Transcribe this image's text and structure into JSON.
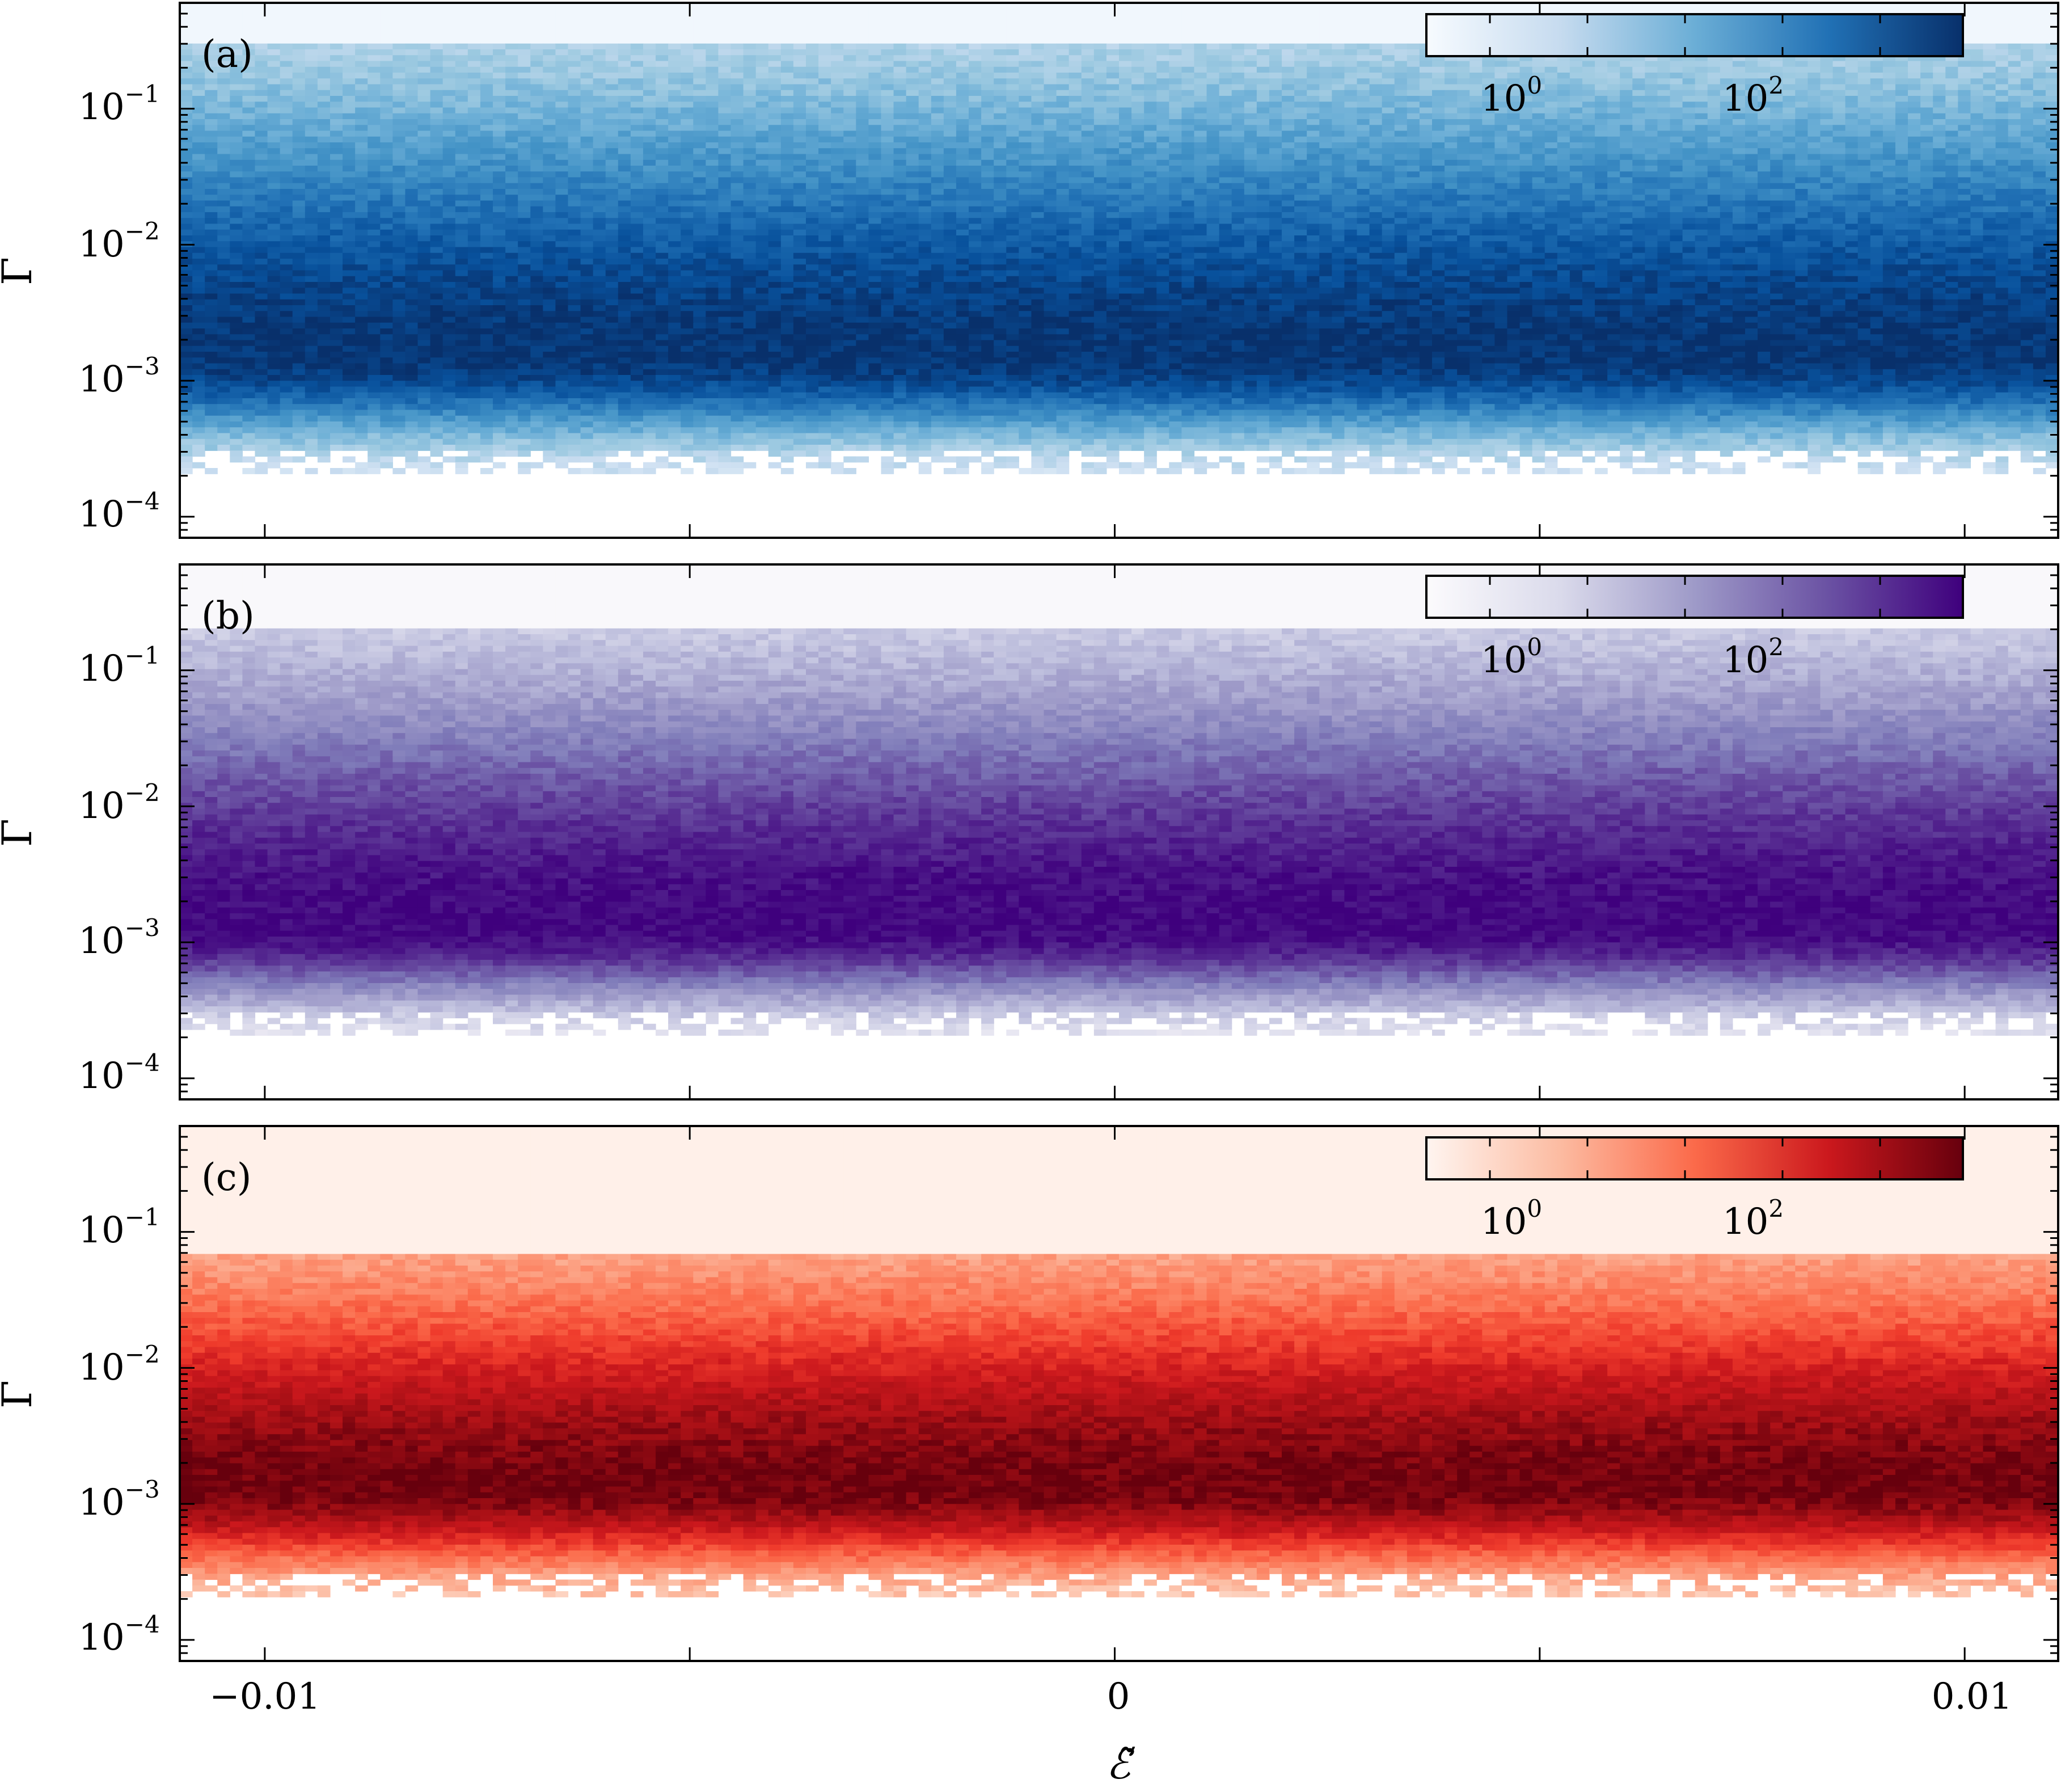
{
  "figure": {
    "x_axis_label": "ℰ̃",
    "y_axis_label": "Γ"
  },
  "chart_data": [
    {
      "type": "heatmap",
      "panel_label": "(a)",
      "colormap": "Blues",
      "colors": {
        "low": "#f7fbff",
        "high": "#08306b"
      },
      "x_range": [
        -0.011,
        0.0111
      ],
      "x_ticks": [
        -0.01,
        0,
        0.01
      ],
      "x_tick_labels": [
        "−0.01",
        "0",
        "0.01"
      ],
      "y_scale": "log",
      "y_range": [
        7e-05,
        0.6
      ],
      "y_ticks": [
        {
          "value": 0.1,
          "base": "10",
          "exp": "−1"
        },
        {
          "value": 0.01,
          "base": "10",
          "exp": "−2"
        },
        {
          "value": 0.001,
          "base": "10",
          "exp": "−3"
        },
        {
          "value": 0.0001,
          "base": "10",
          "exp": "−4"
        }
      ],
      "ylabel": "Γ",
      "density_peak_gamma": 0.0015,
      "density_support": [
        0.0002,
        0.3
      ],
      "colorbar": {
        "scale": "log",
        "ticks": [
          {
            "base": "10",
            "exp": "0"
          },
          {
            "base": "10",
            "exp": "2"
          }
        ]
      }
    },
    {
      "type": "heatmap",
      "panel_label": "(b)",
      "colormap": "Purples",
      "colors": {
        "low": "#fcfbfd",
        "high": "#3f007d"
      },
      "x_range": [
        -0.011,
        0.0111
      ],
      "x_ticks": [
        -0.01,
        0,
        0.01
      ],
      "x_tick_labels": [
        "−0.01",
        "0",
        "0.01"
      ],
      "y_scale": "log",
      "y_range": [
        7e-05,
        0.6
      ],
      "y_ticks": [
        {
          "value": 0.1,
          "base": "10",
          "exp": "−1"
        },
        {
          "value": 0.01,
          "base": "10",
          "exp": "−2"
        },
        {
          "value": 0.001,
          "base": "10",
          "exp": "−3"
        },
        {
          "value": 0.0001,
          "base": "10",
          "exp": "−4"
        }
      ],
      "ylabel": "Γ",
      "density_peak_gamma": 0.0013,
      "density_support": [
        0.0002,
        0.2
      ],
      "colorbar": {
        "scale": "log",
        "ticks": [
          {
            "base": "10",
            "exp": "0"
          },
          {
            "base": "10",
            "exp": "2"
          }
        ]
      }
    },
    {
      "type": "heatmap",
      "panel_label": "(c)",
      "colormap": "Reds",
      "colors": {
        "low": "#fff5f0",
        "high": "#67000d"
      },
      "x_range": [
        -0.011,
        0.0111
      ],
      "x_ticks": [
        -0.01,
        0,
        0.01
      ],
      "x_tick_labels": [
        "−0.01",
        "0",
        "0.01"
      ],
      "y_scale": "log",
      "y_range": [
        7e-05,
        0.6
      ],
      "y_ticks": [
        {
          "value": 0.1,
          "base": "10",
          "exp": "−1"
        },
        {
          "value": 0.01,
          "base": "10",
          "exp": "−2"
        },
        {
          "value": 0.001,
          "base": "10",
          "exp": "−3"
        },
        {
          "value": 0.0001,
          "base": "10",
          "exp": "−4"
        }
      ],
      "ylabel": "Γ",
      "xlabel": "ℰ̃",
      "density_peak_gamma": 0.0013,
      "density_support": [
        0.0002,
        0.07
      ],
      "colorbar": {
        "scale": "log",
        "ticks": [
          {
            "base": "10",
            "exp": "0"
          },
          {
            "base": "10",
            "exp": "2"
          }
        ]
      }
    }
  ]
}
